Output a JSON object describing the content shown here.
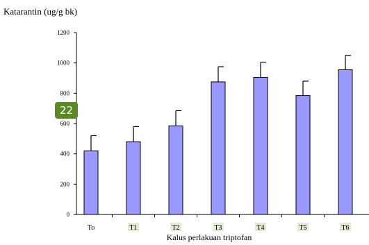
{
  "chart_data": {
    "type": "bar",
    "title": "",
    "ylabel": "Katarantin (ug/g bk)",
    "xlabel": "Kalus  perlakuan triptofan",
    "categories": [
      "To",
      "T1",
      "T2",
      "T3",
      "T4",
      "T5",
      "T6"
    ],
    "values": [
      420,
      480,
      585,
      875,
      905,
      785,
      955
    ],
    "error": [
      100,
      100,
      100,
      100,
      100,
      95,
      95
    ],
    "ylim": [
      0,
      1200
    ],
    "yticks": [
      0,
      200,
      400,
      600,
      800,
      1000,
      1200
    ],
    "grid": false,
    "colors": {
      "bar": "#9999FF",
      "bar_stroke": "#000000",
      "label_highlight": "#E2ECD3",
      "badge": "#5A8A25"
    }
  },
  "badge": {
    "text": "22"
  }
}
